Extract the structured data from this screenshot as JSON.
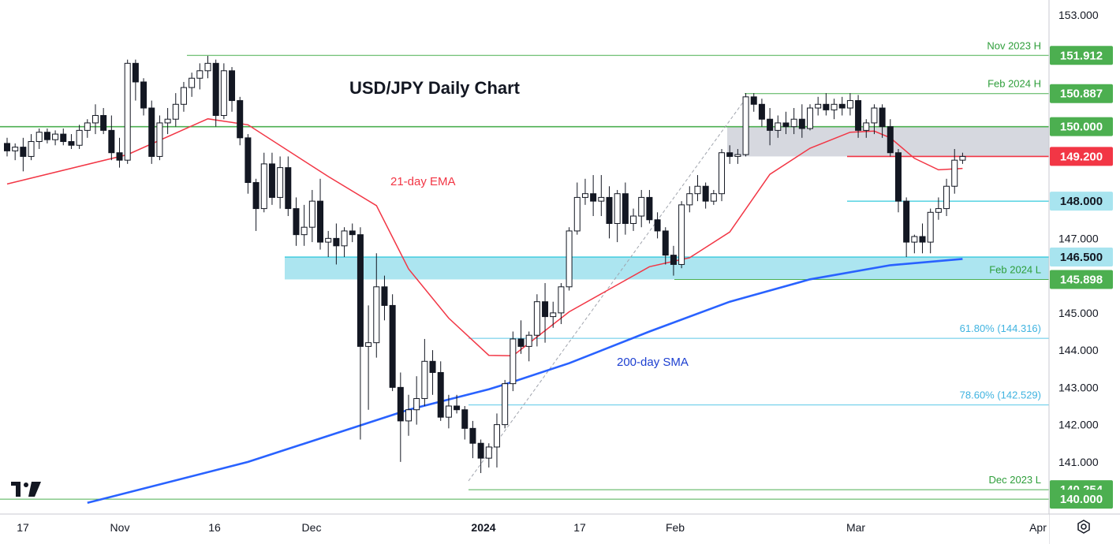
{
  "chart_data": {
    "type": "candlestick",
    "title": "USD/JPY Daily Chart",
    "y_axis": {
      "ticks": [
        "153.000",
        "147.000",
        "145.000",
        "144.000",
        "143.000",
        "142.000",
        "141.000"
      ],
      "ylim": [
        139.6,
        153.4
      ]
    },
    "x_axis": {
      "ticks": [
        {
          "label": "17",
          "bold": false
        },
        {
          "label": "Nov",
          "bold": false
        },
        {
          "label": "16",
          "bold": false
        },
        {
          "label": "Dec",
          "bold": false
        },
        {
          "label": "2024",
          "bold": true
        },
        {
          "label": "17",
          "bold": false
        },
        {
          "label": "Feb",
          "bold": false
        },
        {
          "label": "Mar",
          "bold": false
        },
        {
          "label": "Apr",
          "bold": false
        }
      ]
    },
    "studies": [
      {
        "name": "21-day EMA",
        "color": "#f23645"
      },
      {
        "name": "200-day SMA",
        "color": "#2962ff"
      }
    ],
    "levels": [
      {
        "label": "Nov 2023 H",
        "value": 151.912,
        "tag": "151.912",
        "color": "#4caf50"
      },
      {
        "label": "Feb 2024 H",
        "value": 150.887,
        "tag": "150.887",
        "color": "#4caf50"
      },
      {
        "label": "",
        "value": 150.0,
        "tag": "150.000",
        "color": "#4caf50"
      },
      {
        "label": "",
        "value": 149.2,
        "tag": "149.200",
        "color": "#f23645"
      },
      {
        "label": "",
        "value": 148.0,
        "tag": "148.000",
        "color": "#00bcd4"
      },
      {
        "label": "",
        "value": 146.5,
        "tag": "146.500",
        "color": "#00bcd4"
      },
      {
        "label": "Feb 2024 L",
        "value": 145.898,
        "tag": "145.898",
        "color": "#4caf50"
      },
      {
        "label": "61.80% (144.316)",
        "value": 144.316,
        "tag": "",
        "color": "#5ac8e8"
      },
      {
        "label": "78.60% (142.529)",
        "value": 142.529,
        "tag": "",
        "color": "#5ac8e8"
      },
      {
        "label": "Dec 2023 L",
        "value": 140.254,
        "tag": "140.254",
        "color": "#4caf50"
      },
      {
        "label": "",
        "value": 140.0,
        "tag": "140.000",
        "color": "#4caf50"
      }
    ],
    "zones": [
      {
        "name": "resistance-zone",
        "from": 149.2,
        "to": 150.0,
        "color": "#d1d4dc"
      },
      {
        "name": "support-zone",
        "from": 145.898,
        "to": 146.5,
        "color": "#a8e4ef"
      }
    ],
    "candles": [
      [
        149.55,
        149.7,
        149.2,
        149.35
      ],
      [
        149.35,
        149.55,
        149.1,
        149.45
      ],
      [
        149.45,
        149.7,
        148.8,
        149.2
      ],
      [
        149.2,
        149.8,
        149.1,
        149.6
      ],
      [
        149.6,
        149.95,
        149.4,
        149.85
      ],
      [
        149.85,
        149.95,
        149.55,
        149.65
      ],
      [
        149.65,
        149.9,
        149.5,
        149.8
      ],
      [
        149.8,
        149.95,
        149.5,
        149.6
      ],
      [
        149.6,
        149.8,
        149.4,
        149.5
      ],
      [
        149.5,
        150.05,
        149.4,
        149.9
      ],
      [
        149.9,
        150.2,
        149.7,
        150.1
      ],
      [
        150.1,
        150.6,
        149.8,
        150.3
      ],
      [
        150.3,
        150.5,
        149.8,
        149.9
      ],
      [
        149.9,
        150.3,
        149.1,
        149.3
      ],
      [
        149.3,
        149.7,
        148.9,
        149.1
      ],
      [
        149.1,
        151.8,
        149.0,
        151.7
      ],
      [
        151.7,
        151.8,
        150.7,
        151.2
      ],
      [
        151.2,
        151.3,
        150.3,
        150.5
      ],
      [
        150.5,
        150.7,
        149.0,
        149.2
      ],
      [
        149.2,
        150.3,
        149.1,
        150.1
      ],
      [
        150.1,
        150.5,
        149.8,
        150.2
      ],
      [
        150.2,
        150.9,
        150.0,
        150.6
      ],
      [
        150.6,
        151.2,
        150.4,
        151.05
      ],
      [
        151.05,
        151.45,
        150.8,
        151.3
      ],
      [
        151.3,
        151.7,
        151.0,
        151.5
      ],
      [
        151.5,
        151.9,
        151.3,
        151.7
      ],
      [
        151.7,
        151.8,
        150.0,
        150.3
      ],
      [
        150.3,
        151.7,
        150.2,
        151.5
      ],
      [
        151.5,
        151.6,
        150.4,
        150.7
      ],
      [
        150.7,
        150.8,
        149.5,
        149.7
      ],
      [
        149.7,
        149.8,
        148.2,
        148.5
      ],
      [
        148.5,
        148.6,
        147.2,
        147.8
      ],
      [
        147.8,
        149.3,
        147.7,
        149.0
      ],
      [
        149.0,
        149.3,
        147.9,
        148.1
      ],
      [
        148.1,
        149.2,
        147.8,
        148.9
      ],
      [
        148.9,
        149.2,
        147.6,
        147.8
      ],
      [
        147.8,
        148.1,
        146.8,
        147.1
      ],
      [
        147.1,
        147.9,
        146.8,
        147.3
      ],
      [
        147.3,
        148.3,
        146.9,
        148.0
      ],
      [
        148.0,
        148.6,
        146.7,
        146.9
      ],
      [
        146.9,
        147.2,
        146.5,
        147.0
      ],
      [
        147.0,
        147.4,
        146.3,
        146.8
      ],
      [
        146.8,
        147.3,
        146.5,
        147.2
      ],
      [
        147.2,
        147.4,
        146.9,
        147.1
      ],
      [
        147.1,
        147.3,
        141.6,
        144.1
      ],
      [
        144.1,
        145.2,
        142.4,
        144.2
      ],
      [
        144.2,
        146.6,
        143.8,
        145.7
      ],
      [
        145.7,
        146.0,
        144.8,
        145.2
      ],
      [
        145.2,
        145.5,
        142.9,
        143.0
      ],
      [
        143.0,
        143.4,
        141.0,
        142.1
      ],
      [
        142.1,
        142.8,
        141.7,
        142.4
      ],
      [
        142.4,
        143.3,
        142.0,
        142.7
      ],
      [
        142.7,
        144.3,
        142.5,
        143.7
      ],
      [
        143.7,
        144.0,
        142.8,
        143.4
      ],
      [
        143.4,
        143.7,
        142.1,
        142.2
      ],
      [
        142.2,
        142.8,
        141.9,
        142.5
      ],
      [
        142.5,
        142.8,
        142.3,
        142.4
      ],
      [
        142.4,
        142.5,
        141.6,
        141.9
      ],
      [
        141.9,
        142.1,
        141.1,
        141.5
      ],
      [
        141.5,
        141.6,
        140.7,
        141.1
      ],
      [
        141.1,
        141.5,
        140.85,
        141.4
      ],
      [
        141.4,
        142.3,
        140.85,
        142.0
      ],
      [
        142.0,
        143.2,
        141.9,
        143.1
      ],
      [
        143.1,
        144.5,
        142.9,
        144.3
      ],
      [
        144.3,
        144.8,
        143.9,
        144.1
      ],
      [
        144.1,
        144.5,
        143.7,
        144.4
      ],
      [
        144.4,
        145.5,
        144.1,
        145.3
      ],
      [
        145.3,
        145.8,
        144.2,
        144.9
      ],
      [
        144.9,
        145.3,
        144.6,
        145.0
      ],
      [
        145.0,
        145.8,
        144.7,
        145.7
      ],
      [
        145.7,
        147.3,
        145.6,
        147.2
      ],
      [
        147.2,
        148.5,
        147.1,
        148.1
      ],
      [
        148.1,
        148.6,
        147.9,
        148.2
      ],
      [
        148.2,
        148.7,
        147.6,
        148.0
      ],
      [
        148.0,
        148.7,
        147.6,
        148.1
      ],
      [
        148.1,
        148.4,
        147.0,
        147.4
      ],
      [
        147.4,
        148.3,
        146.9,
        148.2
      ],
      [
        148.2,
        148.5,
        147.1,
        147.4
      ],
      [
        147.4,
        147.8,
        147.2,
        147.6
      ],
      [
        147.6,
        148.3,
        147.3,
        148.1
      ],
      [
        148.1,
        148.3,
        147.4,
        147.5
      ],
      [
        147.5,
        147.7,
        147.0,
        147.2
      ],
      [
        147.2,
        147.3,
        146.3,
        146.55
      ],
      [
        146.55,
        146.8,
        146.0,
        146.3
      ],
      [
        146.3,
        148.0,
        146.2,
        147.9
      ],
      [
        147.9,
        148.4,
        147.7,
        148.2
      ],
      [
        148.2,
        148.7,
        148.0,
        148.4
      ],
      [
        148.4,
        148.5,
        147.8,
        148.0
      ],
      [
        148.0,
        148.3,
        147.9,
        148.2
      ],
      [
        148.2,
        149.4,
        148.0,
        149.3
      ],
      [
        149.3,
        149.5,
        149.0,
        149.2
      ],
      [
        149.2,
        149.4,
        149.0,
        149.25
      ],
      [
        149.25,
        150.9,
        149.2,
        150.8
      ],
      [
        150.8,
        150.9,
        150.4,
        150.6
      ],
      [
        150.6,
        150.75,
        150.0,
        150.2
      ],
      [
        150.2,
        150.5,
        149.5,
        149.9
      ],
      [
        149.9,
        150.3,
        149.7,
        150.1
      ],
      [
        150.1,
        150.4,
        149.8,
        150.0
      ],
      [
        150.0,
        150.5,
        149.8,
        150.2
      ],
      [
        150.2,
        150.6,
        149.7,
        149.95
      ],
      [
        149.95,
        150.6,
        149.9,
        150.5
      ],
      [
        150.5,
        150.8,
        150.3,
        150.6
      ],
      [
        150.6,
        150.9,
        150.3,
        150.45
      ],
      [
        150.45,
        150.75,
        150.2,
        150.6
      ],
      [
        150.6,
        150.8,
        150.3,
        150.5
      ],
      [
        150.5,
        150.9,
        150.3,
        150.7
      ],
      [
        150.7,
        150.85,
        149.7,
        149.9
      ],
      [
        149.9,
        150.2,
        149.7,
        150.1
      ],
      [
        150.1,
        150.6,
        149.8,
        150.5
      ],
      [
        150.5,
        150.6,
        149.7,
        150.0
      ],
      [
        150.0,
        150.2,
        149.2,
        149.3
      ],
      [
        149.3,
        149.4,
        147.7,
        148.0
      ],
      [
        148.0,
        148.1,
        146.5,
        146.9
      ],
      [
        146.9,
        147.1,
        146.6,
        147.05
      ],
      [
        147.05,
        147.4,
        146.6,
        146.9
      ],
      [
        146.9,
        147.8,
        146.6,
        147.7
      ],
      [
        147.7,
        148.1,
        147.5,
        147.8
      ],
      [
        147.8,
        148.6,
        147.6,
        148.4
      ],
      [
        148.4,
        149.4,
        148.2,
        149.1
      ],
      [
        149.1,
        149.3,
        149.0,
        149.2
      ]
    ],
    "ema21": [
      [
        0,
        148.46
      ],
      [
        15,
        149.25
      ],
      [
        25,
        150.21
      ],
      [
        30,
        150.05
      ],
      [
        40,
        148.66
      ],
      [
        46,
        147.88
      ],
      [
        50,
        146.18
      ],
      [
        55,
        144.86
      ],
      [
        60,
        143.86
      ],
      [
        63,
        143.85
      ],
      [
        70,
        145.03
      ],
      [
        80,
        146.24
      ],
      [
        85,
        146.48
      ],
      [
        90,
        147.17
      ],
      [
        95,
        148.72
      ],
      [
        100,
        149.42
      ],
      [
        105,
        149.85
      ],
      [
        108,
        149.88
      ],
      [
        110,
        149.7
      ],
      [
        113,
        149.15
      ],
      [
        116,
        148.84
      ],
      [
        119,
        148.88
      ]
    ],
    "sma200": [
      [
        10,
        139.9
      ],
      [
        30,
        141.0
      ],
      [
        50,
        142.4
      ],
      [
        60,
        142.95
      ],
      [
        63,
        143.15
      ],
      [
        70,
        143.65
      ],
      [
        80,
        144.5
      ],
      [
        90,
        145.3
      ],
      [
        100,
        145.9
      ],
      [
        110,
        146.28
      ],
      [
        119,
        146.45
      ]
    ]
  }
}
